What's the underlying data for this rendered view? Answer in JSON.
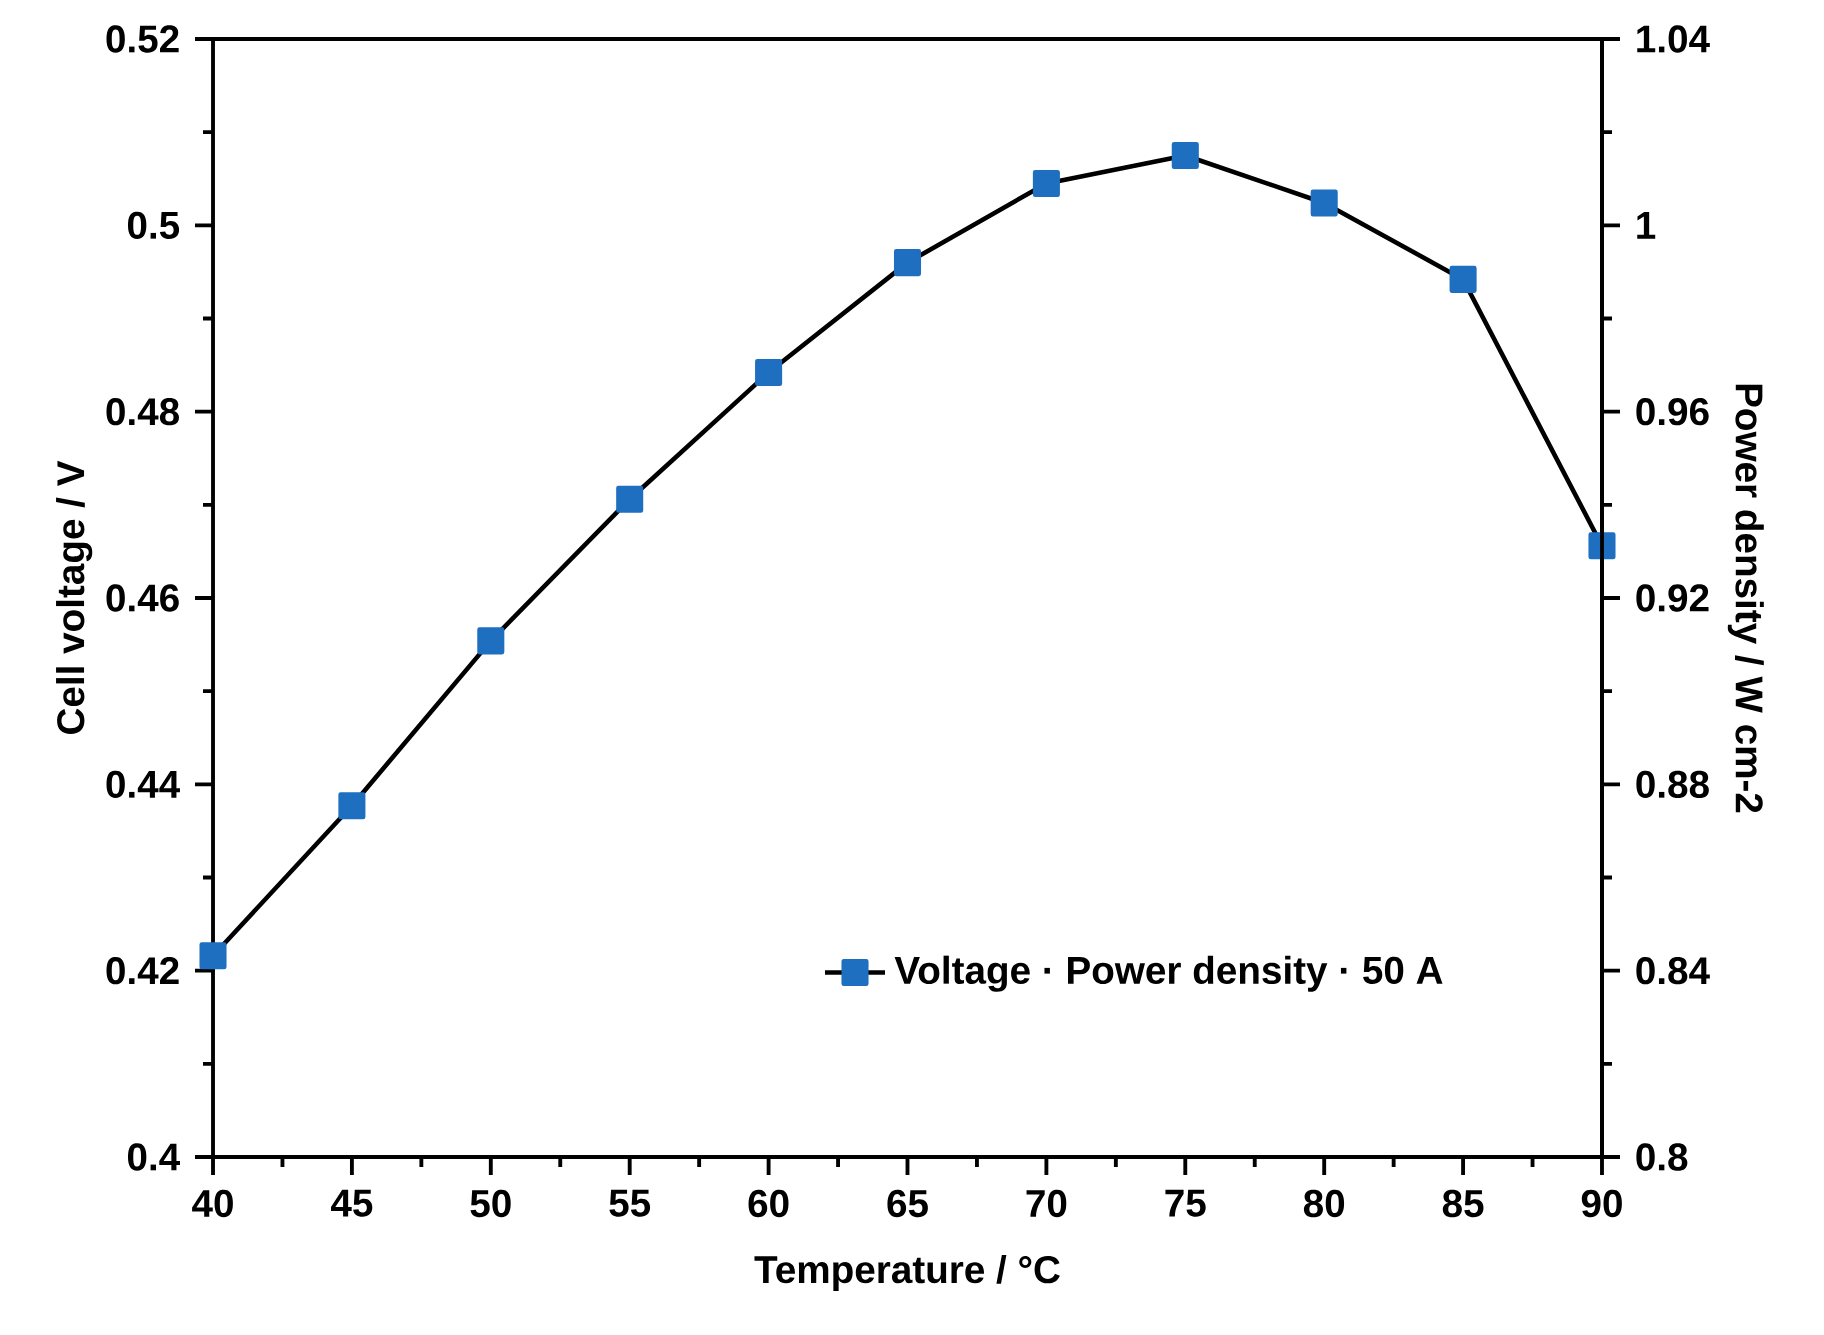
{
  "chart_data": {
    "type": "line",
    "xlabel": "Temperature / °C",
    "ylabel": "Cell voltage / V",
    "y2label": "Power density / W cm-2",
    "x": [
      40,
      45,
      50,
      55,
      60,
      65,
      70,
      75,
      80,
      85,
      90
    ],
    "series": [
      {
        "name": "Voltage · Power density · 50 A",
        "color": "#1f6fc1",
        "values": [
          0.4216,
          0.4377,
          0.4554,
          0.4706,
          0.4842,
          0.496,
          0.5045,
          0.5075,
          0.5024,
          0.4942,
          0.4656
        ]
      }
    ],
    "xlim": [
      40,
      90
    ],
    "xticks": [
      40,
      45,
      50,
      55,
      60,
      65,
      70,
      75,
      80,
      85,
      90
    ],
    "ylim": [
      0.4,
      0.52
    ],
    "yticks": [
      0.4,
      0.42,
      0.44,
      0.46,
      0.48,
      0.5,
      0.52
    ],
    "y2lim": [
      0.8,
      1.04
    ],
    "y2ticks": [
      0.8,
      0.84,
      0.88,
      0.92,
      0.96,
      1,
      1.04
    ],
    "marker": "square",
    "line_style": "solid",
    "legend": "bottom right",
    "grid": false
  }
}
